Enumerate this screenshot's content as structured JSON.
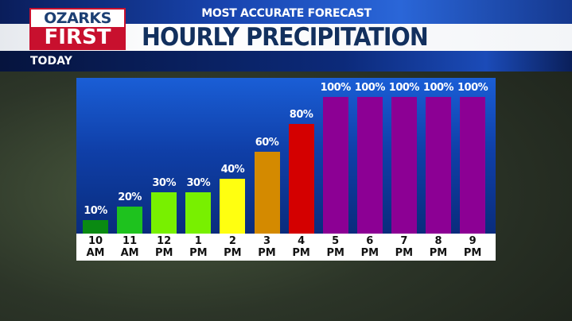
{
  "header": {
    "subtitle": "MOST ACCURATE FORECAST",
    "title": "HOURLY PRECIPITATION",
    "section": "TODAY"
  },
  "logo": {
    "line1": "OZARKS",
    "line2": "FIRST"
  },
  "chart_data": {
    "type": "bar",
    "title": "HOURLY PRECIPITATION",
    "categories": [
      [
        "10",
        "AM"
      ],
      [
        "11",
        "AM"
      ],
      [
        "12",
        "PM"
      ],
      [
        "1",
        "PM"
      ],
      [
        "2",
        "PM"
      ],
      [
        "3",
        "PM"
      ],
      [
        "4",
        "PM"
      ],
      [
        "5",
        "PM"
      ],
      [
        "6",
        "PM"
      ],
      [
        "7",
        "PM"
      ],
      [
        "8",
        "PM"
      ],
      [
        "9",
        "PM"
      ]
    ],
    "values": [
      10,
      20,
      30,
      30,
      40,
      60,
      80,
      100,
      100,
      100,
      100,
      100
    ],
    "labels": [
      "10%",
      "20%",
      "30%",
      "30%",
      "40%",
      "60%",
      "80%",
      "100%",
      "100%",
      "100%",
      "100%",
      "100%"
    ],
    "colors": [
      "#0a8a12",
      "#1ec21e",
      "#78f000",
      "#78f000",
      "#ffff10",
      "#d48a00",
      "#d40000",
      "#8c0094",
      "#8c0094",
      "#8c0094",
      "#8c0094",
      "#8c0094"
    ],
    "ylim": [
      0,
      100
    ],
    "grid": false
  }
}
